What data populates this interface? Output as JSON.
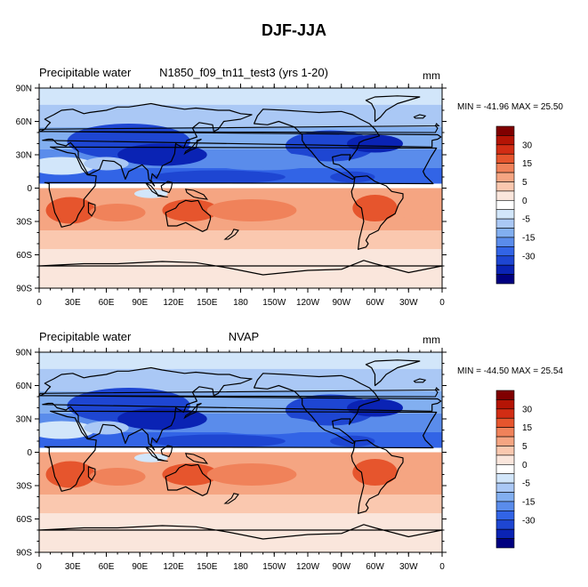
{
  "figure_title": "DJF-JJA",
  "colors": {
    "levels": [
      "#000080",
      "#0a23b4",
      "#1e46d2",
      "#3264e6",
      "#5a8ceb",
      "#82aff0",
      "#aac8f5",
      "#d2e6fa",
      "#ffffff",
      "#fae6dc",
      "#fac8af",
      "#f5a582",
      "#f0825a",
      "#e6552d",
      "#d22d14",
      "#b41405",
      "#800000"
    ]
  },
  "chart_data": [
    {
      "type": "heatmap",
      "panel": "model",
      "title_left": "Precipitable water",
      "title_center": "N1850_f09_tn11_test3 (yrs 1-20)",
      "units": "mm",
      "min_max": "MIN = -41.96 MAX =  25.50",
      "min": -41.96,
      "max": 25.5,
      "xticks": [
        "0",
        "30E",
        "60E",
        "90E",
        "120E",
        "150E",
        "180",
        "150W",
        "120W",
        "90W",
        "60W",
        "30W",
        "0"
      ],
      "yticks": [
        "90N",
        "60N",
        "30N",
        "0",
        "30S",
        "60S",
        "90S"
      ],
      "colorbar_labels": [
        "30",
        "15",
        "5",
        "0",
        "-5",
        "-15",
        "-30"
      ]
    },
    {
      "type": "heatmap",
      "panel": "obs",
      "title_left": "Precipitable water",
      "title_center": "NVAP",
      "units": "mm",
      "min_max": "MIN = -44.50 MAX =  25.54",
      "min": -44.5,
      "max": 25.54,
      "xticks": [
        "0",
        "30E",
        "60E",
        "90E",
        "120E",
        "150E",
        "180",
        "150W",
        "120W",
        "90W",
        "60W",
        "30W",
        "0"
      ],
      "yticks": [
        "90N",
        "60N",
        "30N",
        "0",
        "30S",
        "60S",
        "90S"
      ],
      "colorbar_labels": [
        "30",
        "15",
        "5",
        "0",
        "-5",
        "-15",
        "-30"
      ]
    }
  ]
}
